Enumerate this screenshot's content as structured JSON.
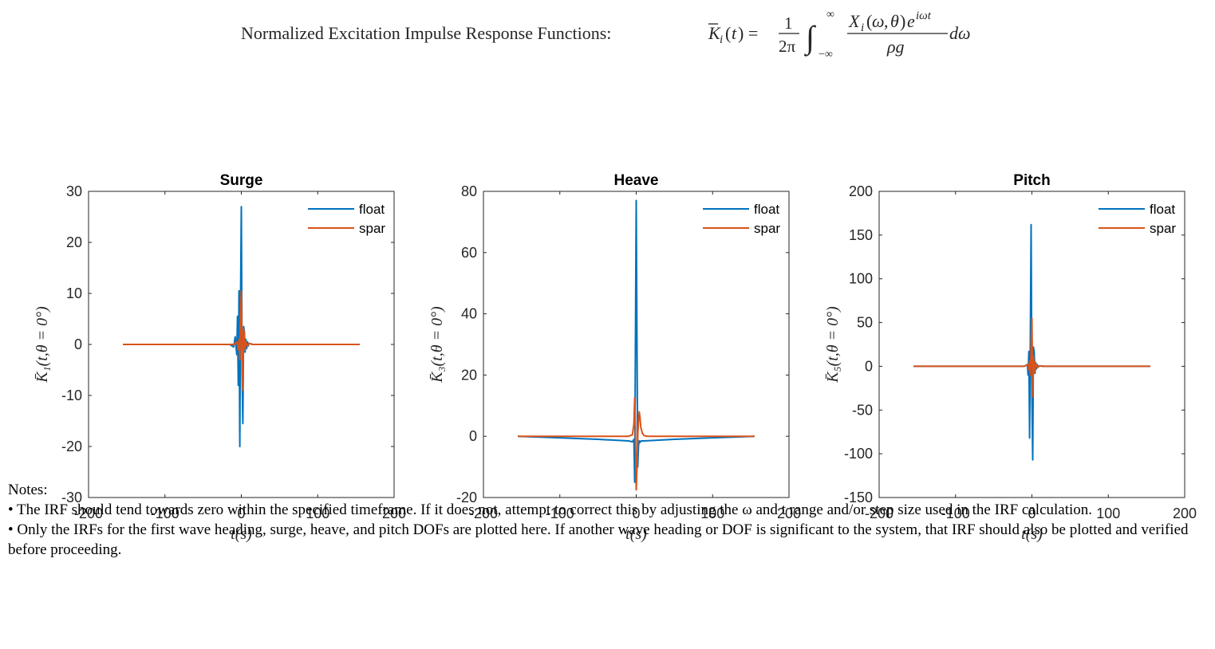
{
  "figure": {
    "title_prefix": "Normalized Excitation Impulse Response Functions:",
    "title_formula": "K̄ᵢ(t) = (1/2π) ∫₋∞^∞ Xᵢ(ω,θ)e^{iωt}/(ρg) dω",
    "colors": {
      "float": "#0072BD",
      "spar": "#D95319"
    }
  },
  "chart_data": [
    {
      "type": "line",
      "title": "Surge",
      "xlabel": "t(s)",
      "ylabel": "K̄₁(t,θ = 0°)",
      "xlim": [
        -200,
        200
      ],
      "ylim": [
        -30,
        30
      ],
      "xticks": [
        -200,
        -100,
        0,
        100,
        200
      ],
      "yticks": [
        -30,
        -20,
        -10,
        0,
        10,
        20,
        30
      ],
      "legend": "top-right",
      "series": [
        {
          "name": "float",
          "color": "#0072BD",
          "x": [
            -155,
            -30,
            -15,
            -10,
            -8,
            -6,
            -5,
            -4,
            -3,
            -2,
            -1,
            0,
            1,
            2,
            3,
            4,
            5,
            6,
            7,
            8,
            9,
            10,
            15,
            30,
            155
          ],
          "y": [
            0,
            0,
            0,
            -0.5,
            1.5,
            -2,
            5.5,
            -8,
            10.5,
            -20,
            8,
            27,
            -6,
            -15.5,
            3.5,
            2.5,
            -1.5,
            1,
            -0.8,
            0.5,
            -0.3,
            0.2,
            0,
            0,
            0
          ]
        },
        {
          "name": "spar",
          "color": "#D95319",
          "x": [
            -155,
            -20,
            -10,
            -6,
            -4,
            -3,
            -2,
            -1,
            0,
            1,
            2,
            3,
            4,
            5,
            6,
            8,
            10,
            15,
            30,
            155
          ],
          "y": [
            0,
            0,
            0,
            0.5,
            -1,
            1,
            -3,
            6,
            10.5,
            -2,
            -9,
            3,
            2,
            -1,
            0.5,
            -0.3,
            0.2,
            0,
            0,
            0
          ]
        }
      ]
    },
    {
      "type": "line",
      "title": "Heave",
      "xlabel": "t(s)",
      "ylabel": "K̄₃(t,θ = 0°)",
      "xlim": [
        -200,
        200
      ],
      "ylim": [
        -20,
        80
      ],
      "xticks": [
        -200,
        -100,
        0,
        100,
        200
      ],
      "yticks": [
        -20,
        0,
        20,
        40,
        60,
        80
      ],
      "legend": "top-right",
      "series": [
        {
          "name": "float",
          "color": "#0072BD",
          "x": [
            -155,
            -100,
            -50,
            -10,
            -5,
            -3,
            -2,
            -1,
            0,
            1,
            2,
            3,
            4,
            5,
            6,
            8,
            10,
            50,
            100,
            155
          ],
          "y": [
            0,
            -0.5,
            -1,
            -1.5,
            -1.8,
            -1,
            -15,
            30,
            77,
            28,
            -10,
            -3,
            -1.5,
            -2,
            -1.6,
            -1.5,
            -1.5,
            -1,
            -0.5,
            0
          ]
        },
        {
          "name": "spar",
          "color": "#D95319",
          "x": [
            -155,
            -50,
            -10,
            -5,
            -3,
            -2,
            -1,
            0,
            1,
            2,
            3,
            4,
            5,
            6,
            8,
            10,
            12,
            15,
            50,
            155
          ],
          "y": [
            0,
            0,
            0,
            0.5,
            4,
            12.5,
            2,
            -17.5,
            -10,
            0,
            5,
            8,
            6,
            3,
            1,
            0.3,
            0.1,
            0,
            0,
            0
          ]
        }
      ]
    },
    {
      "type": "line",
      "title": "Pitch",
      "xlabel": "t(s)",
      "ylabel": "K̄₅(t,θ = 0°)",
      "xlim": [
        -200,
        200
      ],
      "ylim": [
        -150,
        200
      ],
      "xticks": [
        -200,
        -100,
        0,
        100,
        200
      ],
      "yticks": [
        -150,
        -100,
        -50,
        0,
        50,
        100,
        150,
        200
      ],
      "legend": "top-right",
      "series": [
        {
          "name": "float",
          "color": "#0072BD",
          "x": [
            -155,
            -30,
            -10,
            -6,
            -5,
            -4,
            -3,
            -2,
            -1,
            0,
            1,
            2,
            3,
            4,
            5,
            6,
            7,
            8,
            10,
            15,
            30,
            155
          ],
          "y": [
            0,
            0,
            0,
            2,
            -10,
            17,
            -82,
            40,
            162,
            -35,
            -107,
            22,
            15,
            -8,
            4,
            -3,
            2,
            -1,
            0.5,
            0,
            0,
            0
          ]
        },
        {
          "name": "spar",
          "color": "#D95319",
          "x": [
            -155,
            -20,
            -10,
            -5,
            -4,
            -3,
            -2,
            -1,
            0,
            1,
            2,
            3,
            4,
            5,
            6,
            8,
            10,
            15,
            155
          ],
          "y": [
            0,
            0,
            0,
            2,
            -4,
            6,
            -10,
            20,
            55,
            -35,
            12,
            -8,
            5,
            -3,
            2,
            -1,
            0.5,
            0,
            0
          ]
        }
      ]
    }
  ],
  "notes": {
    "heading": "Notes:",
    "line1": "• The IRF should tend towards zero within the specified timeframe. If it does not, attempt to correct this by adjusting the ω and t range and/or step size used in the IRF calculation.",
    "line2": "• Only the IRFs for the first wave heading, surge, heave, and pitch DOFs are plotted here. If another wave heading or DOF is significant to the system, that IRF should also be plotted and verified before proceeding."
  }
}
